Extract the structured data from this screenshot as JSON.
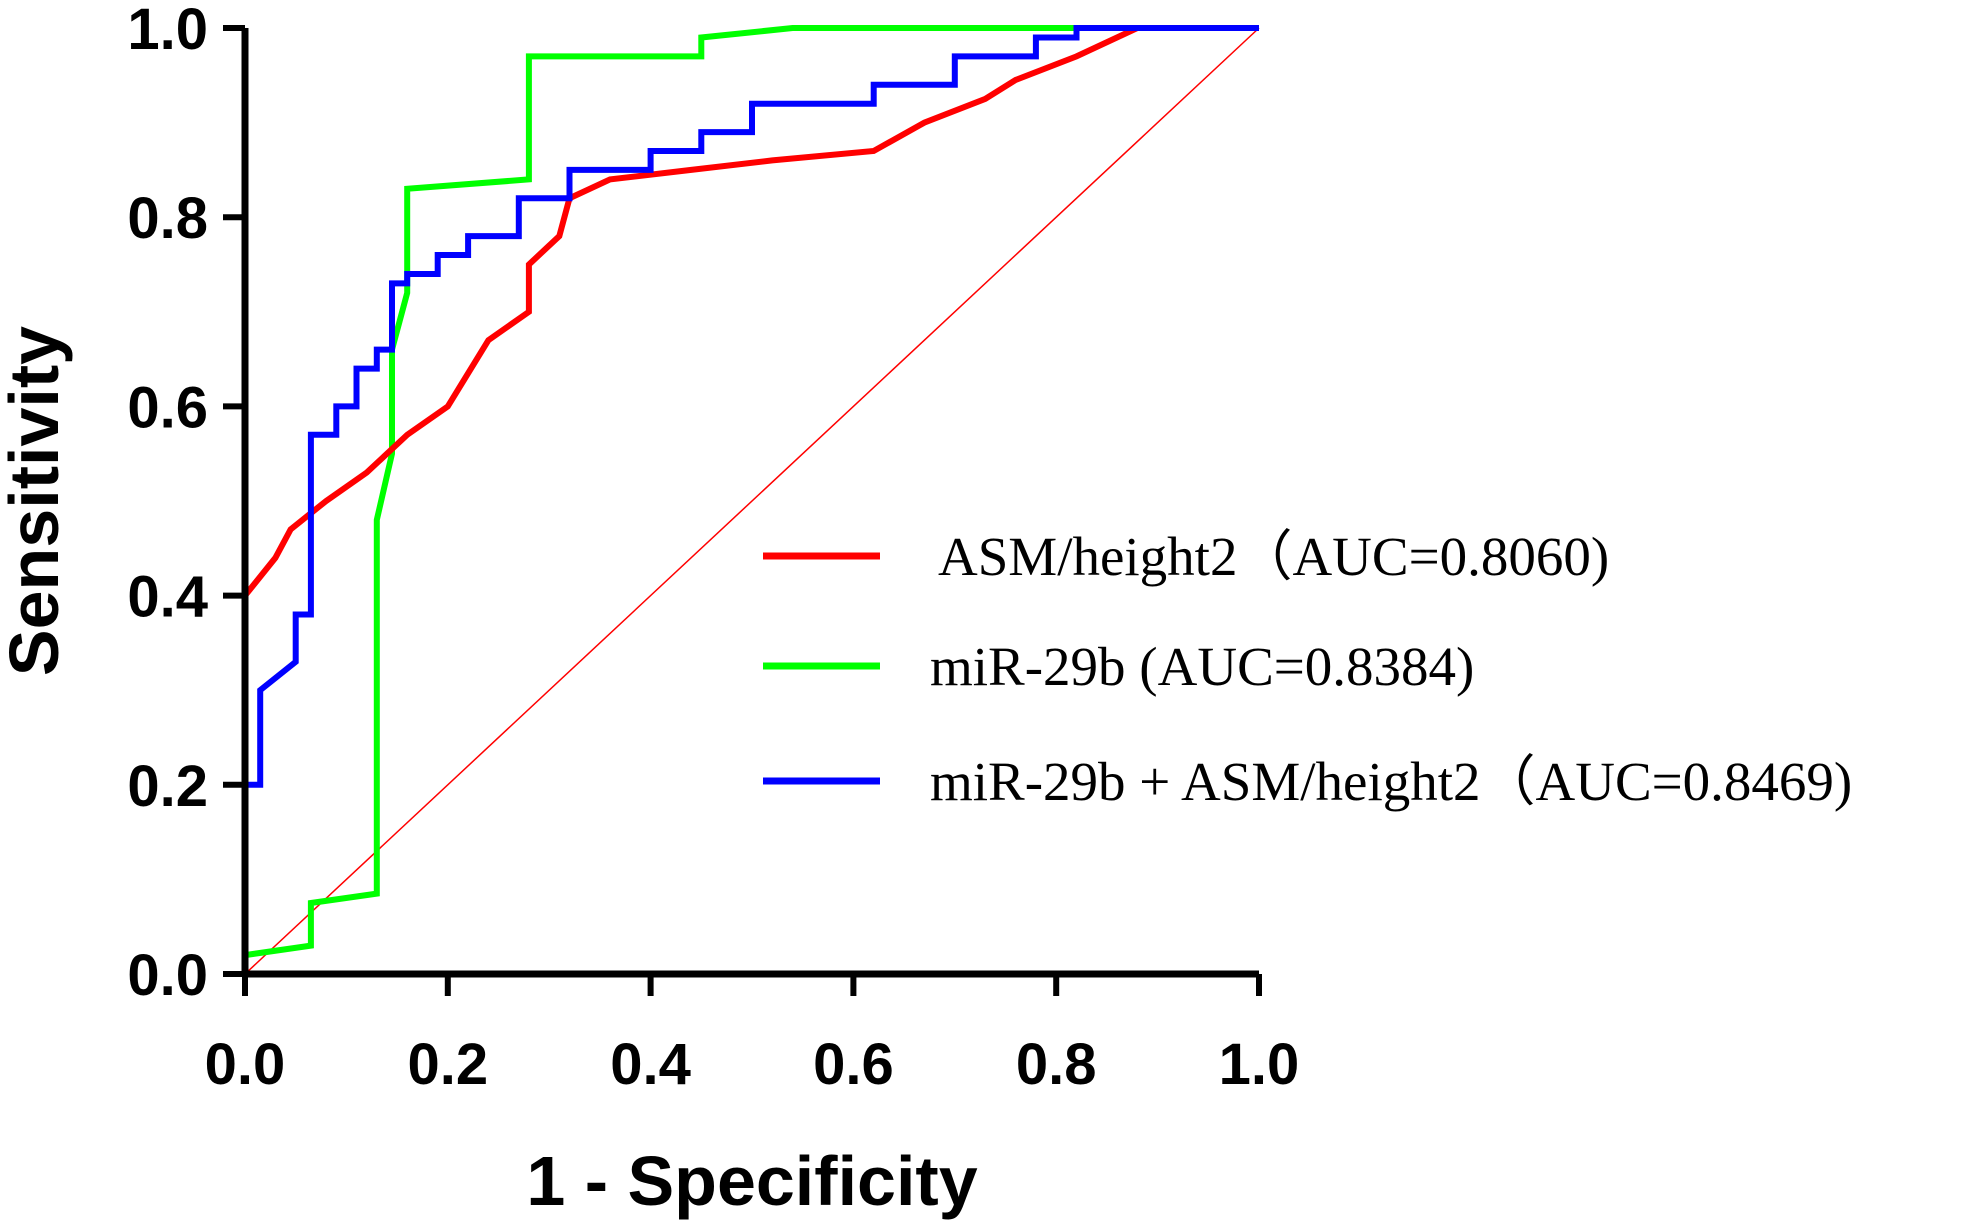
{
  "chart_data": {
    "type": "line",
    "title": "",
    "xlabel": "1 - Specificity",
    "ylabel": "Sensitivity",
    "xlim": [
      0,
      1
    ],
    "ylim": [
      0,
      1
    ],
    "xticks": [
      "0.0",
      "0.2",
      "0.4",
      "0.6",
      "0.8",
      "1.0"
    ],
    "yticks": [
      "0.0",
      "0.2",
      "0.4",
      "0.6",
      "0.8",
      "1.0"
    ],
    "legend_position": "center-right",
    "reference_line": {
      "name": "reference",
      "color": "#ff0000",
      "x": [
        0,
        1
      ],
      "y": [
        0,
        1
      ]
    },
    "series": [
      {
        "name": "ASM/height2（AUC=0.8060)",
        "color": "#ff0000",
        "step": false,
        "x": [
          0,
          0,
          0.03,
          0.045,
          0.08,
          0.12,
          0.16,
          0.2,
          0.24,
          0.28,
          0.28,
          0.31,
          0.32,
          0.36,
          0.44,
          0.52,
          0.62,
          0.67,
          0.73,
          0.76,
          0.82,
          0.88,
          0.94,
          1.0
        ],
        "y": [
          0.21,
          0.4,
          0.44,
          0.47,
          0.5,
          0.53,
          0.57,
          0.6,
          0.67,
          0.7,
          0.75,
          0.78,
          0.82,
          0.84,
          0.85,
          0.86,
          0.87,
          0.9,
          0.925,
          0.945,
          0.97,
          1.0,
          1.0,
          1.0
        ]
      },
      {
        "name": "miR-29b (AUC=0.8384)",
        "color": "#00ff00",
        "step": true,
        "x": [
          0,
          0.065,
          0.065,
          0.13,
          0.13,
          0.145,
          0.145,
          0.16,
          0.16,
          0.28,
          0.28,
          0.45,
          0.45,
          0.54,
          1.0
        ],
        "y": [
          0.02,
          0.03,
          0.075,
          0.085,
          0.48,
          0.55,
          0.66,
          0.72,
          0.83,
          0.84,
          0.97,
          0.97,
          0.99,
          1.0,
          1.0
        ]
      },
      {
        "name": "miR-29b + ASM/height2（AUC=0.8469)",
        "color": "#0000ff",
        "step": true,
        "x": [
          0,
          0,
          0.015,
          0.015,
          0.05,
          0.05,
          0.065,
          0.065,
          0.09,
          0.09,
          0.11,
          0.11,
          0.13,
          0.13,
          0.145,
          0.145,
          0.16,
          0.16,
          0.19,
          0.19,
          0.22,
          0.22,
          0.27,
          0.27,
          0.32,
          0.32,
          0.4,
          0.4,
          0.45,
          0.45,
          0.5,
          0.5,
          0.62,
          0.62,
          0.7,
          0.7,
          0.78,
          0.78,
          0.82,
          0.82,
          1.0
        ],
        "y": [
          0,
          0.2,
          0.2,
          0.3,
          0.33,
          0.38,
          0.38,
          0.57,
          0.57,
          0.6,
          0.6,
          0.64,
          0.64,
          0.66,
          0.66,
          0.73,
          0.73,
          0.74,
          0.74,
          0.76,
          0.76,
          0.78,
          0.78,
          0.82,
          0.82,
          0.85,
          0.85,
          0.87,
          0.87,
          0.89,
          0.89,
          0.92,
          0.92,
          0.94,
          0.94,
          0.97,
          0.97,
          0.99,
          0.99,
          1.0,
          1.0
        ]
      }
    ]
  }
}
